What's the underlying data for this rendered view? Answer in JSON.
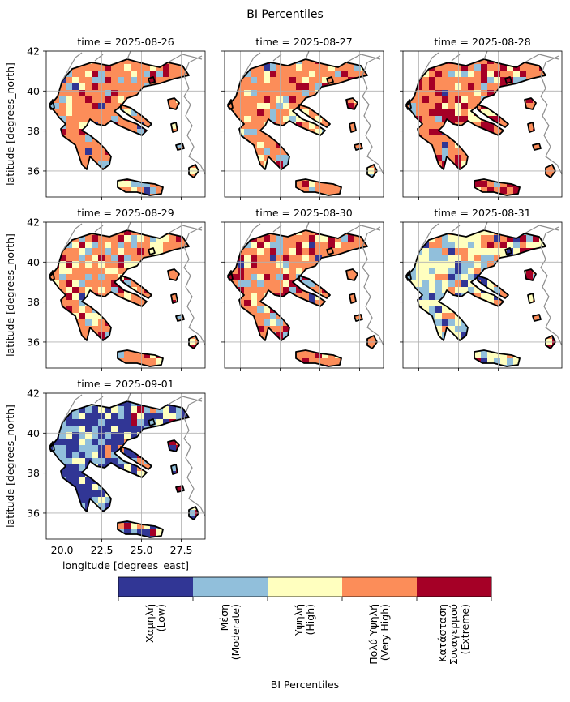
{
  "figure": {
    "title": "BI Percentiles"
  },
  "chart_data": {
    "type": "heatmap",
    "title": "BI Percentiles",
    "xlabel": "longitude [degrees_east]",
    "ylabel": "latitude [degrees_north]",
    "xlim": [
      19.0,
      29.0
    ],
    "ylim": [
      34.7,
      42.0
    ],
    "x_ticks": [
      "20.0",
      "22.5",
      "25.0",
      "27.5"
    ],
    "y_ticks": [
      "36",
      "38",
      "40",
      "42"
    ],
    "grid": true,
    "panels": [
      {
        "label": "time = 2025-08-26",
        "dominant_class": "Πολύ Υψηλή (Very High)"
      },
      {
        "label": "time = 2025-08-27",
        "dominant_class": "Πολύ Υψηλή (Very High)"
      },
      {
        "label": "time = 2025-08-28",
        "dominant_class": "Πολύ Υψηλή (Very High)"
      },
      {
        "label": "time = 2025-08-29",
        "dominant_class": "Πολύ Υψηλή (Very High)"
      },
      {
        "label": "time = 2025-08-30",
        "dominant_class": "Πολύ Υψηλή (Very High)"
      },
      {
        "label": "time = 2025-08-31",
        "dominant_class": "Υψηλή (High)"
      },
      {
        "label": "time = 2025-09-01",
        "dominant_class": "Χαμηλή (Low)"
      }
    ],
    "colorbar": {
      "label": "BI Percentiles",
      "classes": [
        {
          "line1": "Χαμηλή",
          "line2": "(Low)",
          "color": "#313695"
        },
        {
          "line1": "Μέση",
          "line2": "(Moderate)",
          "color": "#91bfdb"
        },
        {
          "line1": "Υψηλή",
          "line2": "(High)",
          "color": "#ffffbf"
        },
        {
          "line1": "Πολύ Υψηλή",
          "line2": "(Very High)",
          "color": "#fc8d59"
        },
        {
          "line1": "Κατάσταση",
          "line2": "Συναγερμού",
          "line3": "(Extreme)",
          "color": "#a50026"
        }
      ]
    }
  }
}
